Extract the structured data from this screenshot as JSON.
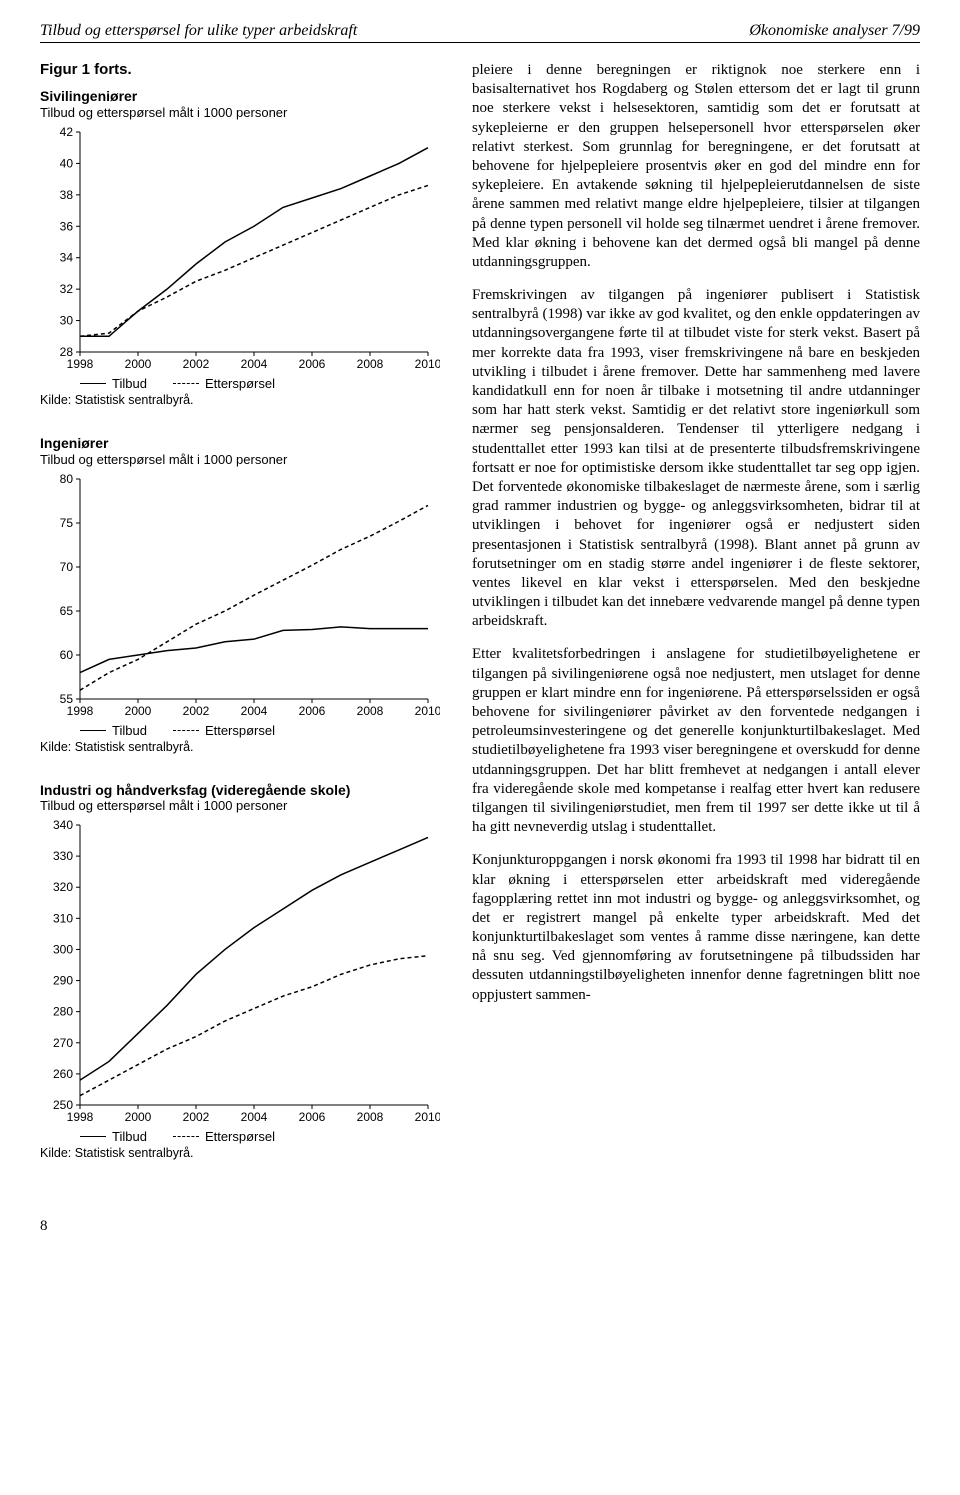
{
  "header": {
    "left": "Tilbud og etterspørsel for ulike typer arbeidskraft",
    "right": "Økonomiske analyser 7/99"
  },
  "figure_heading": "Figur 1 forts.",
  "chart_common": {
    "subtitle": "Tilbud og etterspørsel målt i 1000 personer",
    "x_ticks": [
      1998,
      2000,
      2002,
      2004,
      2006,
      2008,
      2010
    ],
    "legend_solid": "Tilbud",
    "legend_dashed": "Etterspørsel",
    "source": "Kilde: Statistisk sentralbyrå.",
    "line_color": "#000000",
    "background_color": "#ffffff",
    "font_family": "Arial",
    "tick_fontsize": 12
  },
  "chart1": {
    "title_bold": "Sivilingeniører",
    "y_ticks": [
      28,
      30,
      32,
      34,
      36,
      38,
      40,
      42
    ],
    "ylim": [
      28,
      42
    ],
    "series": {
      "Tilbud": {
        "style": "solid",
        "values": [
          29.0,
          29.0,
          30.6,
          32.0,
          33.6,
          35.0,
          36.0,
          37.2,
          37.8,
          38.4,
          39.2,
          40.0,
          41.0
        ]
      },
      "Etterspørsel": {
        "style": "dashed",
        "values": [
          29.0,
          29.2,
          30.6,
          31.5,
          32.5,
          33.2,
          34.0,
          34.8,
          35.6,
          36.4,
          37.2,
          38.0,
          38.6
        ]
      }
    }
  },
  "chart2": {
    "title_bold": "Ingeniører",
    "y_ticks": [
      55,
      60,
      65,
      70,
      75,
      80
    ],
    "ylim": [
      55,
      80
    ],
    "series": {
      "Tilbud": {
        "style": "solid",
        "values": [
          58.0,
          59.5,
          60.0,
          60.5,
          60.8,
          61.5,
          61.8,
          62.8,
          62.9,
          63.2,
          63.0,
          63.0,
          63.0
        ]
      },
      "Etterspørsel": {
        "style": "dashed",
        "values": [
          56.0,
          58.0,
          59.5,
          61.5,
          63.5,
          65.0,
          66.8,
          68.5,
          70.2,
          72.0,
          73.5,
          75.2,
          77.0
        ]
      }
    }
  },
  "chart3": {
    "title_bold": "Industri og håndverksfag (videregående skole)",
    "y_ticks": [
      250,
      260,
      270,
      280,
      290,
      300,
      310,
      320,
      330,
      340
    ],
    "ylim": [
      250,
      340
    ],
    "series": {
      "Tilbud": {
        "style": "solid",
        "values": [
          258,
          264,
          273,
          282,
          292,
          300,
          307,
          313,
          319,
          324,
          328,
          332,
          336
        ]
      },
      "Etterspørsel": {
        "style": "dashed",
        "values": [
          253,
          258,
          263,
          268,
          272,
          277,
          281,
          285,
          288,
          292,
          295,
          297,
          298
        ]
      }
    }
  },
  "body": {
    "p1": "pleiere i denne beregningen er riktignok noe sterkere enn i basisalternativet hos Rogdaberg og Stølen ettersom det er lagt til grunn noe sterkere vekst i helsesektoren, samtidig som det er forutsatt at sykepleierne er den gruppen helsepersonell hvor etterspørselen øker relativt sterkest. Som grunnlag for beregningene, er det forutsatt at behovene for hjelpepleiere prosentvis øker en god del mindre enn for sykepleiere. En avtakende søkning til hjelpepleierutdannelsen de siste årene sammen med relativt mange eldre hjelpepleiere, tilsier at tilgangen på denne typen personell vil holde seg tilnærmet uendret i årene fremover. Med klar økning i behovene kan det dermed også bli mangel på denne utdanningsgruppen.",
    "p2": "Fremskrivingen av tilgangen på ingeniører publisert i Statistisk sentralbyrå (1998) var ikke av god kvalitet, og den enkle oppdateringen av utdanningsovergangene førte til at tilbudet viste for sterk vekst. Basert på mer korrekte data fra 1993, viser fremskrivingene nå bare en  beskjeden utvikling i tilbudet i årene fremover. Dette har sammenheng med lavere kandidatkull enn for noen år tilbake i motsetning til andre utdanninger som har hatt sterk vekst. Samtidig er det relativt store ingeniørkull som nærmer seg pensjonsalderen. Tendenser til ytterligere nedgang i studenttallet etter 1993 kan tilsi at de presenterte tilbudsfremskrivingene fortsatt er noe for optimistiske dersom ikke studenttallet tar seg opp igjen. Det forventede økonomiske tilbakeslaget de nærmeste årene, som i særlig grad rammer industrien og bygge- og anleggsvirksomheten, bidrar til at utviklingen i behovet for ingeniører også er nedjustert siden presentasjonen i Statistisk sentralbyrå (1998). Blant annet på grunn av forutsetninger om en stadig større andel ingeniører i de fleste sektorer, ventes likevel en klar vekst i etterspørselen. Med den beskjedne utviklingen i tilbudet kan det innebære vedvarende mangel på denne typen arbeidskraft.",
    "p3": "Etter kvalitetsforbedringen i anslagene for studietilbøyelighetene er tilgangen på sivilingeniørene også noe nedjustert, men utslaget for denne gruppen er klart mindre enn for ingeniørene. På etterspørselssiden er også behovene for sivilingeniører påvirket av den forventede nedgangen i petroleumsinvesteringene og det generelle konjunkturtilbakeslaget. Med studietilbøyelighetene fra 1993 viser beregningene et overskudd for denne utdanningsgruppen. Det har blitt fremhevet at nedgangen i antall elever fra videregående skole med kompetanse i realfag etter hvert kan redusere tilgangen til sivilingeniørstudiet, men frem til 1997 ser dette ikke ut til å ha gitt nevneverdig utslag i studenttallet.",
    "p4": "Konjunkturoppgangen i norsk økonomi fra 1993 til 1998 har bidratt til en klar økning i etterspørselen etter arbeidskraft med videregående fagopplæring rettet inn mot industri og bygge- og anleggsvirksomhet, og det er registrert mangel på enkelte typer arbeidskraft. Med det konjunkturtilbakeslaget som ventes å ramme disse næringene, kan dette nå snu seg. Ved gjennomføring av forutsetningene på tilbudssiden har dessuten utdanningstilbøyeligheten innenfor denne fagretningen blitt noe oppjustert sammen-"
  },
  "page_number": "8"
}
